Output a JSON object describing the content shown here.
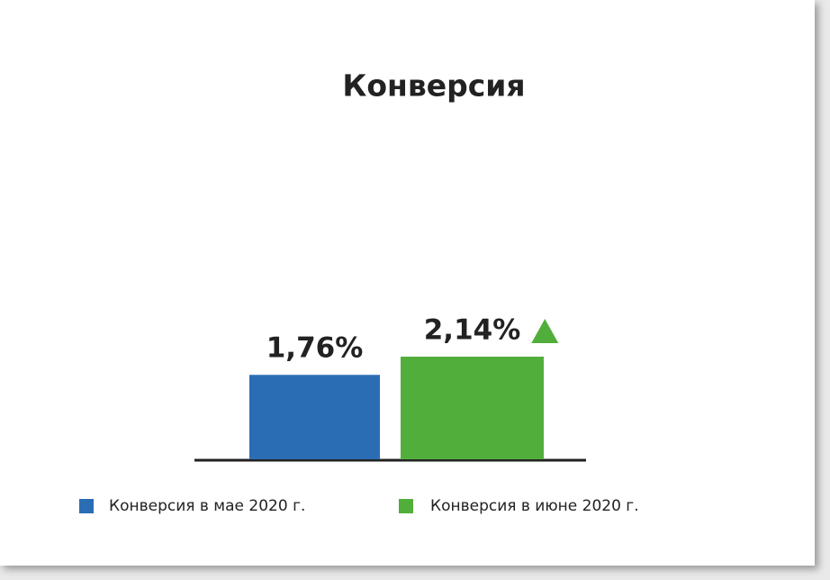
{
  "chart_data": {
    "type": "bar",
    "title": "Конверсия",
    "series": [
      {
        "name": "Конверсия в мае 2020 г.",
        "color": "#2a6db5",
        "values": [
          1.76
        ],
        "value_labels": [
          "1,76%"
        ]
      },
      {
        "name": "Конверсия в июне 2020 г.",
        "color": "#52ae3b",
        "values": [
          2.14
        ],
        "value_labels": [
          "2,14%"
        ]
      }
    ]
  }
}
